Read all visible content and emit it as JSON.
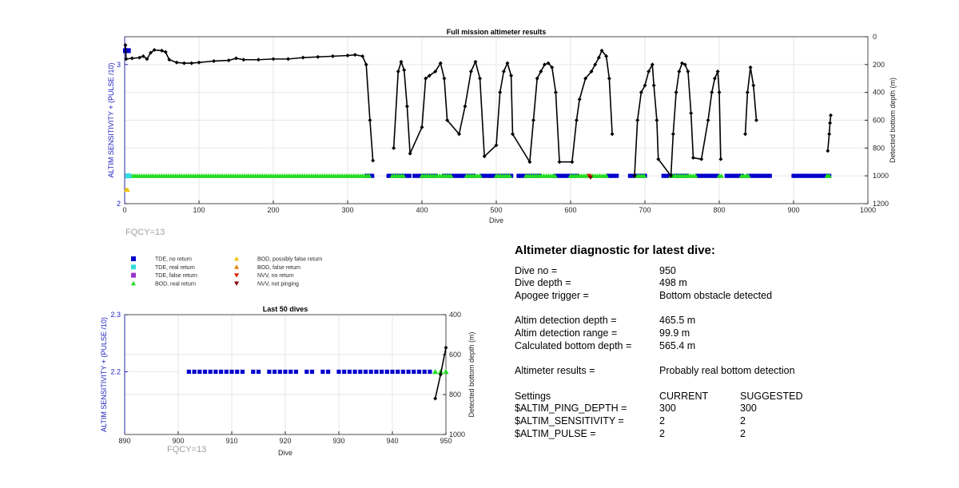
{
  "chart_data": [
    {
      "type": "scatter",
      "title": "Full mission altimeter results",
      "xlabel": "Dive",
      "ylabel_left": "ALTIM SENSITIVITY + (PULSE /10)",
      "ylabel_right": "Detected bottom depth (m)",
      "xlim": [
        0,
        1000
      ],
      "xticks": [
        0,
        100,
        200,
        300,
        400,
        500,
        600,
        700,
        800,
        900,
        1000
      ],
      "ylim_left": [
        2,
        3.2
      ],
      "yticks_left": [
        2,
        3
      ],
      "ylim_right": [
        1200,
        0
      ],
      "yticks_right": [
        0,
        200,
        400,
        600,
        800,
        1000,
        1200
      ],
      "grid": true,
      "annotation": "FQCY=13",
      "settings_series": [
        {
          "name": "TDE, no return",
          "color": "#0000cc",
          "marker": "square",
          "left_y": 3.1,
          "dives": [
            [
              1,
              6
            ]
          ]
        },
        {
          "name": "TDE, real return",
          "color": "#33dddd",
          "marker": "square",
          "left_y": 2.2,
          "dives": [
            [
              4,
              6
            ]
          ]
        },
        {
          "name": "BOD, possibly false return",
          "color": "#f2c200",
          "marker": "triangle",
          "left_y": 2.1,
          "dives": [
            [
              2,
              4
            ]
          ]
        }
      ],
      "flag_row": {
        "depth": 1000,
        "tde_no_return_ranges": [
          [
            325,
            335
          ],
          [
            355,
            385
          ],
          [
            390,
            420
          ],
          [
            430,
            470
          ],
          [
            480,
            520
          ],
          [
            530,
            560
          ],
          [
            580,
            610
          ],
          [
            650,
            665
          ],
          [
            680,
            700
          ],
          [
            725,
            760
          ],
          [
            770,
            800
          ],
          [
            810,
            830
          ],
          [
            840,
            870
          ],
          [
            900,
            950
          ]
        ],
        "bod_real_return_ranges": [
          [
            5,
            330
          ],
          [
            360,
            375
          ],
          [
            400,
            440
          ],
          [
            460,
            480
          ],
          [
            500,
            520
          ],
          [
            540,
            580
          ],
          [
            600,
            650
          ],
          [
            690,
            700
          ],
          [
            735,
            770
          ],
          [
            800,
            805
          ],
          [
            830,
            840
          ],
          [
            945,
            950
          ]
        ],
        "nvv_no_return_dives": [
          625
        ],
        "nvv_not_pinging_dives": [
          627
        ]
      },
      "depth_series": {
        "name": "Detected bottom depth",
        "color": "#000000",
        "points": [
          [
            1,
            60
          ],
          [
            2,
            160
          ],
          [
            10,
            155
          ],
          [
            20,
            150
          ],
          [
            25,
            140
          ],
          [
            30,
            160
          ],
          [
            35,
            115
          ],
          [
            40,
            95
          ],
          [
            50,
            100
          ],
          [
            55,
            110
          ],
          [
            60,
            165
          ],
          [
            70,
            185
          ],
          [
            80,
            190
          ],
          [
            90,
            190
          ],
          [
            100,
            185
          ],
          [
            120,
            175
          ],
          [
            140,
            170
          ],
          [
            150,
            155
          ],
          [
            160,
            165
          ],
          [
            180,
            165
          ],
          [
            200,
            160
          ],
          [
            220,
            160
          ],
          [
            240,
            150
          ],
          [
            260,
            145
          ],
          [
            280,
            140
          ],
          [
            300,
            135
          ],
          [
            310,
            130
          ],
          [
            320,
            140
          ],
          [
            325,
            200
          ],
          [
            330,
            600
          ],
          [
            334,
            890
          ],
          [
            362,
            800
          ],
          [
            368,
            250
          ],
          [
            372,
            180
          ],
          [
            376,
            240
          ],
          [
            380,
            500
          ],
          [
            384,
            840
          ],
          [
            400,
            650
          ],
          [
            405,
            300
          ],
          [
            410,
            280
          ],
          [
            418,
            250
          ],
          [
            425,
            190
          ],
          [
            430,
            300
          ],
          [
            434,
            600
          ],
          [
            450,
            700
          ],
          [
            458,
            500
          ],
          [
            466,
            250
          ],
          [
            472,
            180
          ],
          [
            478,
            300
          ],
          [
            484,
            860
          ],
          [
            500,
            780
          ],
          [
            505,
            400
          ],
          [
            510,
            250
          ],
          [
            515,
            190
          ],
          [
            520,
            280
          ],
          [
            522,
            700
          ],
          [
            545,
            900
          ],
          [
            550,
            600
          ],
          [
            555,
            300
          ],
          [
            560,
            250
          ],
          [
            565,
            200
          ],
          [
            570,
            190
          ],
          [
            575,
            220
          ],
          [
            580,
            400
          ],
          [
            585,
            900
          ],
          [
            602,
            900
          ],
          [
            608,
            600
          ],
          [
            612,
            450
          ],
          [
            620,
            300
          ],
          [
            628,
            250
          ],
          [
            633,
            200
          ],
          [
            638,
            150
          ],
          [
            642,
            100
          ],
          [
            648,
            140
          ],
          [
            652,
            300
          ],
          [
            656,
            700
          ],
          [
            686,
            1000
          ],
          [
            690,
            600
          ],
          [
            695,
            400
          ],
          [
            700,
            350
          ],
          [
            705,
            250
          ],
          [
            710,
            200
          ],
          [
            712,
            350
          ],
          [
            716,
            600
          ],
          [
            718,
            880
          ],
          [
            735,
            1000
          ],
          [
            738,
            700
          ],
          [
            742,
            400
          ],
          [
            746,
            250
          ],
          [
            750,
            190
          ],
          [
            754,
            200
          ],
          [
            758,
            250
          ],
          [
            762,
            550
          ],
          [
            765,
            870
          ],
          [
            776,
            880
          ],
          [
            785,
            600
          ],
          [
            790,
            400
          ],
          [
            794,
            300
          ],
          [
            798,
            250
          ],
          [
            800,
            400
          ],
          [
            802,
            880
          ],
          [
            835,
            700
          ],
          [
            838,
            400
          ],
          [
            842,
            220
          ],
          [
            846,
            350
          ],
          [
            850,
            600
          ],
          [
            946,
            820
          ],
          [
            948,
            700
          ],
          [
            949,
            620
          ],
          [
            950,
            565
          ]
        ]
      }
    },
    {
      "type": "scatter",
      "title": "Last 50 dives",
      "xlabel": "Dive",
      "ylabel_left": "ALTIM SENSITIVITY + (PULSE /10)",
      "ylabel_right": "Detected bottom depth (m)",
      "xlim": [
        890,
        950
      ],
      "xticks": [
        890,
        900,
        910,
        920,
        930,
        940,
        950
      ],
      "ylim_left": [
        2.09,
        2.3
      ],
      "yticks_left": [
        2.2,
        2.3
      ],
      "ylim_right": [
        1000,
        400
      ],
      "yticks_right": [
        400,
        600,
        800,
        1000
      ],
      "grid": true,
      "annotation": "FQCY=13",
      "tde_no_return_dives": [
        902,
        903,
        904,
        905,
        906,
        907,
        908,
        909,
        910,
        911,
        912,
        914,
        915,
        917,
        918,
        919,
        920,
        921,
        922,
        924,
        925,
        927,
        928,
        930,
        931,
        932,
        933,
        934,
        935,
        936,
        937,
        938,
        939,
        940,
        941,
        942,
        943,
        944,
        945,
        946,
        947
      ],
      "bod_real_return_dives": [
        948,
        949,
        950
      ],
      "left_y": 2.2,
      "depth_points": [
        [
          948,
          820
        ],
        [
          949,
          700
        ],
        [
          950,
          565
        ]
      ]
    }
  ],
  "legend": {
    "items": [
      {
        "label": "TDE, no return",
        "color": "#0000cc",
        "marker": "square"
      },
      {
        "label": "TDE, real return",
        "color": "#33dddd",
        "marker": "square"
      },
      {
        "label": "TDE, false return",
        "color": "#9933cc",
        "marker": "square"
      },
      {
        "label": "BOD, real return",
        "color": "#22dd22",
        "marker": "triangle-up"
      },
      {
        "label": "BOD, possibly false return",
        "color": "#f2c200",
        "marker": "triangle-up"
      },
      {
        "label": "BOD, false return",
        "color": "#e08000",
        "marker": "triangle-up"
      },
      {
        "label": "NVV, no return",
        "color": "#dd2200",
        "marker": "triangle-down"
      },
      {
        "label": "NVV, not pinging",
        "color": "#880000",
        "marker": "triangle-down"
      }
    ]
  },
  "diagnostic": {
    "heading": "Altimeter diagnostic for latest dive:",
    "dive_no_label": "Dive no =",
    "dive_no": "950",
    "dive_depth_label": "Dive depth =",
    "dive_depth": "498 m",
    "apogee_label": "Apogee trigger =",
    "apogee": "Bottom obstacle detected",
    "det_depth_label": "Altim detection depth =",
    "det_depth": "465.5 m",
    "det_range_label": "Altim detection range =",
    "det_range": "99.9 m",
    "calc_depth_label": "Calculated bottom depth =",
    "calc_depth": "565.4 m",
    "results_label": "Altimeter results =",
    "results": "Probably real bottom detection",
    "settings_label": "Settings",
    "current_label": "CURRENT",
    "suggested_label": "SUGGESTED",
    "ping_label": "$ALTIM_PING_DEPTH =",
    "ping_current": "300",
    "ping_suggested": "300",
    "sens_label": "$ALTIM_SENSITIVITY =",
    "sens_current": "2",
    "sens_suggested": "2",
    "pulse_label": "$ALTIM_PULSE =",
    "pulse_current": "2",
    "pulse_suggested": "2"
  }
}
